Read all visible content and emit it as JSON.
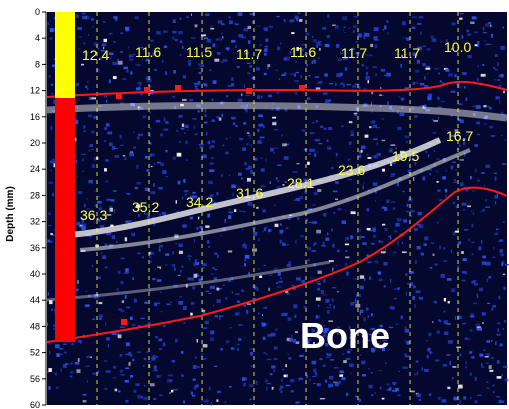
{
  "axis": {
    "label": "Depth (mm)",
    "ticks": [
      "0",
      "4",
      "8",
      "12",
      "16",
      "20",
      "24",
      "28",
      "32",
      "36",
      "40",
      "44",
      "48",
      "52",
      "56",
      "60"
    ]
  },
  "top_measurements": [
    "12.4",
    "11.6",
    "11.5",
    "11.7",
    "11.6",
    "11.7",
    "11.7",
    "10.0"
  ],
  "mid_measurements": [
    "36.3",
    "35.2",
    "34.2",
    "31.6",
    "28.1",
    "23.6",
    "19.5",
    "16.7"
  ],
  "tissue_label": "Bone",
  "colors": {
    "background": "#05082e",
    "speckle": "#1f3fd0",
    "speckle_bright": "#ffffff",
    "trace": "#ff1a1a",
    "gauge_top": "#ffff00",
    "gauge_bottom": "#ff0000",
    "guide": "#ffff33",
    "annotation": "#ffff55"
  }
}
